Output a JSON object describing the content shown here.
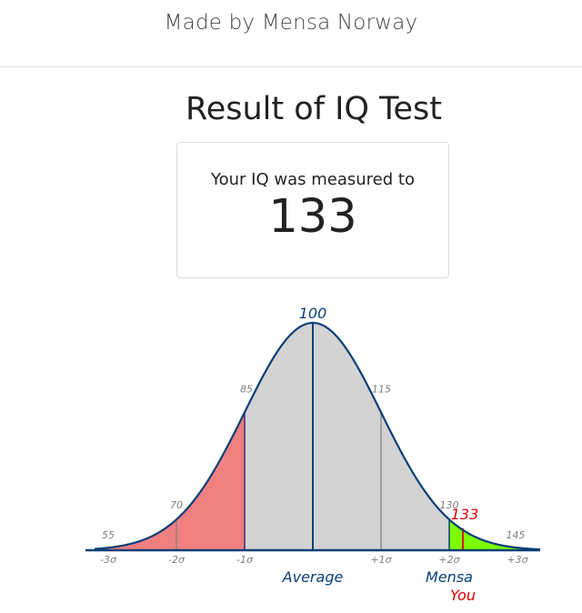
{
  "header": {
    "text": "Made by Mensa Norway"
  },
  "page_title": "Result of IQ Test",
  "result": {
    "label": "Your IQ was measured to",
    "value": "133"
  },
  "colors": {
    "curve": "#0a3f78",
    "fill_main": "#d3d3d3",
    "fill_low": "#f08080",
    "fill_mensa": "#7cfc00",
    "you_marker": "#e00000",
    "sigma_lines": "#7f7f7f",
    "tick_text": "#808080"
  },
  "chart_data": {
    "type": "area",
    "distribution": {
      "mean": 100,
      "sd": 15
    },
    "x_range": [
      52,
      150
    ],
    "sigma_ticks": [
      {
        "x": 55,
        "label": "-3σ",
        "value_label": "55"
      },
      {
        "x": 70,
        "label": "-2σ",
        "value_label": "70"
      },
      {
        "x": 85,
        "label": "-1σ",
        "value_label": "85"
      },
      {
        "x": 115,
        "label": "+1σ",
        "value_label": "115"
      },
      {
        "x": 130,
        "label": "+2σ",
        "value_label": "130"
      },
      {
        "x": 145,
        "label": "+3σ",
        "value_label": "145"
      }
    ],
    "mean_label": "100",
    "shaded_regions": [
      {
        "from": 52,
        "to": 85,
        "color_key": "fill_low"
      },
      {
        "from": 85,
        "to": 130,
        "color_key": "fill_main"
      },
      {
        "from": 130,
        "to": 150,
        "color_key": "fill_mensa"
      }
    ],
    "you_value": 133,
    "you_value_label": "133",
    "annotations": {
      "average": "Average",
      "mensa": "Mensa",
      "you": "You"
    }
  }
}
